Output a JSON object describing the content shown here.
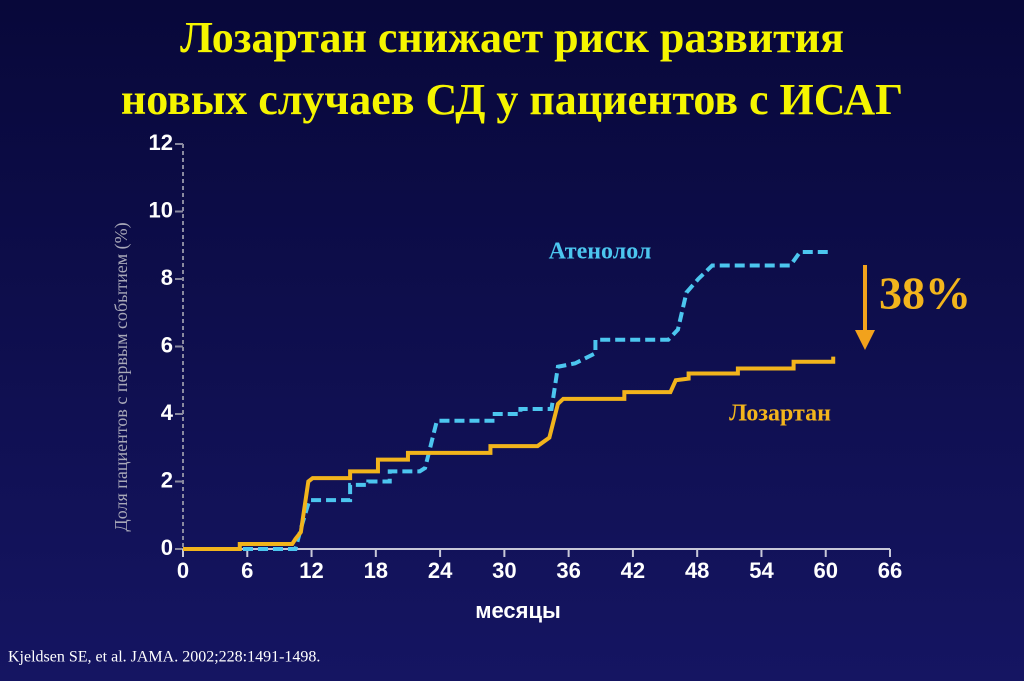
{
  "chart_data": {
    "type": "line",
    "title": [
      "Лозартан снижает риск развития",
      "новых случаев СД у пациентов с ИСАГ"
    ],
    "y_label": "Доля пациентов с первым событием (%)",
    "x_label": "месяцы",
    "footnote": "Kjeldsen SE, et al. JAMA. 2002;228:1491-1498.",
    "annotation": "38%",
    "xlim": [
      0,
      66
    ],
    "xticks": [
      0,
      6,
      12,
      18,
      24,
      30,
      36,
      42,
      48,
      54,
      60,
      66
    ],
    "ylim": [
      0,
      12
    ],
    "yticks": [
      0,
      2,
      4,
      6,
      8,
      10,
      12
    ],
    "series": [
      {
        "name": "Атенолол",
        "color": "#4cc6ef",
        "dashed": true,
        "x": [
          0,
          10.5,
          11.0,
          11.8,
          15.6,
          15.6,
          17.3,
          17.3,
          19.3,
          19.3,
          22.1,
          22.6,
          23.7,
          29.1,
          29.1,
          31.5,
          31.5,
          34.4,
          35.0,
          36.6,
          36.6,
          38.5,
          38.5,
          45.3,
          46.2,
          47.0,
          48.1,
          49.4,
          56.7,
          57.6,
          60.4
        ],
        "values": [
          0,
          0,
          0.6,
          1.45,
          1.45,
          1.9,
          1.9,
          2.0,
          2.0,
          2.3,
          2.3,
          2.4,
          3.8,
          3.8,
          4.0,
          4.0,
          4.15,
          4.15,
          5.4,
          5.5,
          5.5,
          5.8,
          6.2,
          6.2,
          6.5,
          7.6,
          8.0,
          8.4,
          8.4,
          8.8,
          8.8
        ]
      },
      {
        "name": "Лозартан",
        "color": "#f2b41c",
        "dashed": false,
        "x": [
          0,
          5.3,
          5.3,
          10.2,
          10.5,
          11.0,
          11.7,
          12.1,
          15.6,
          15.6,
          18.2,
          18.2,
          21.0,
          21.0,
          28.7,
          28.7,
          33.1,
          34.2,
          35.0,
          35.5,
          41.2,
          41.2,
          45.5,
          46.0,
          47.2,
          47.2,
          51.8,
          51.8,
          57.0,
          57.0,
          60.7,
          60.7
        ],
        "values": [
          0,
          0,
          0.15,
          0.15,
          0.3,
          0.5,
          2.0,
          2.1,
          2.1,
          2.3,
          2.3,
          2.65,
          2.65,
          2.85,
          2.85,
          3.05,
          3.05,
          3.3,
          4.3,
          4.45,
          4.45,
          4.65,
          4.65,
          5.0,
          5.05,
          5.2,
          5.2,
          5.35,
          5.35,
          5.55,
          5.55,
          5.7
        ]
      }
    ]
  }
}
